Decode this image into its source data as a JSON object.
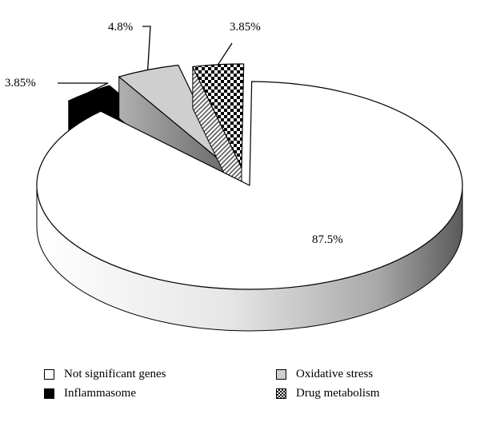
{
  "chart_data": {
    "type": "pie",
    "title": "",
    "three_d": true,
    "exploded": true,
    "slices": [
      {
        "label": "Not significant genes",
        "value": 87.5,
        "value_label": "87.5%",
        "pattern": "white"
      },
      {
        "label": "Inflammasome",
        "value": 3.85,
        "value_label": "3.85%",
        "pattern": "black"
      },
      {
        "label": "Oxidative stress",
        "value": 4.8,
        "value_label": "4.8%",
        "pattern": "light-grey"
      },
      {
        "label": "Drug metabolism",
        "value": 3.85,
        "value_label": "3.85%",
        "pattern": "checkerboard"
      }
    ],
    "legend": {
      "placement": "bottom",
      "items": [
        "Not significant genes",
        "Oxidative stress",
        "Inflammasome",
        "Drug metabolism"
      ]
    },
    "colors": {
      "Not significant genes": "#ffffff",
      "Inflammasome": "#000000",
      "Oxidative stress": "#cfcfcf",
      "Drug metabolism": "checkerboard"
    }
  }
}
